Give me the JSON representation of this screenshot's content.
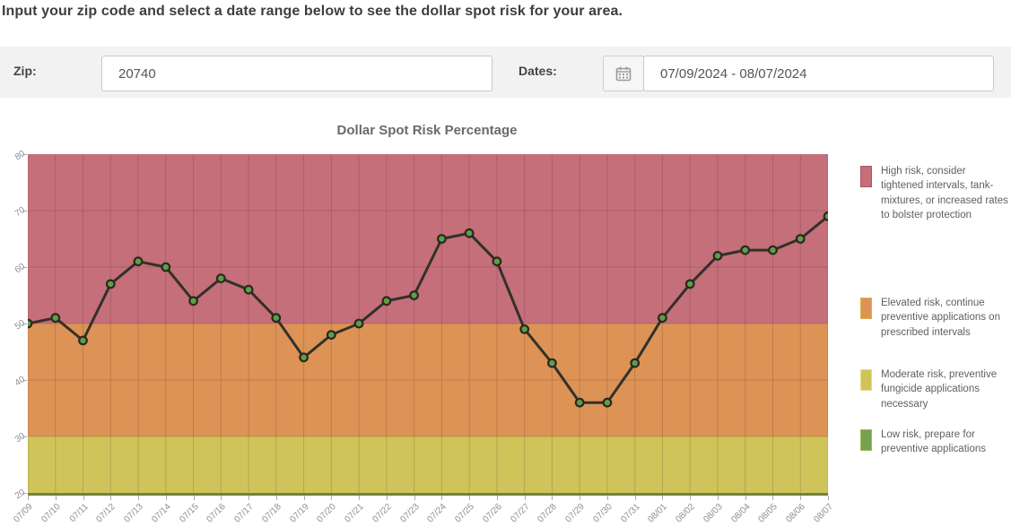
{
  "page": {
    "instruction": "Input your zip code and select a date range below to see the dollar spot risk for your area."
  },
  "form": {
    "zip_label": "Zip:",
    "zip_value": "20740",
    "dates_label": "Dates:",
    "dates_value": "07/09/2024 - 08/07/2024",
    "calendar_icon": "calendar-icon"
  },
  "chart_data": {
    "type": "line",
    "title": "Dollar Spot Risk Percentage",
    "x": [
      "07/09",
      "07/10",
      "07/11",
      "07/12",
      "07/13",
      "07/14",
      "07/15",
      "07/16",
      "07/17",
      "07/18",
      "07/19",
      "07/20",
      "07/21",
      "07/22",
      "07/23",
      "07/24",
      "07/25",
      "07/26",
      "07/27",
      "07/28",
      "07/29",
      "07/30",
      "07/31",
      "08/01",
      "08/02",
      "08/03",
      "08/04",
      "08/05",
      "08/06",
      "08/07"
    ],
    "values": [
      50,
      51,
      47,
      57,
      61,
      60,
      54,
      58,
      56,
      51,
      44,
      48,
      50,
      54,
      55,
      65,
      66,
      61,
      49,
      43,
      36,
      36,
      43,
      51,
      57,
      62,
      63,
      63,
      65,
      69
    ],
    "ylim": [
      20,
      80
    ],
    "yticks": [
      80,
      70,
      60,
      50,
      40,
      30,
      20
    ],
    "grid": true,
    "legend_position": "right",
    "line_color": "#33302b",
    "marker_fill": "#5f9e45",
    "marker_stroke": "#2b2722",
    "grid_color": "rgba(80,40,40,0.20)",
    "bands": [
      {
        "name": "high",
        "from": 50,
        "to": 80,
        "color": "#c46f7a"
      },
      {
        "name": "elevated",
        "from": 30,
        "to": 50,
        "color": "#dc9355"
      },
      {
        "name": "moderate",
        "from": 20,
        "to": 30,
        "color": "#cfc45a"
      },
      {
        "name": "low",
        "from": null,
        "to": 20,
        "color": "#6f8440"
      }
    ]
  },
  "legend": {
    "items": [
      {
        "color": "#c46f7a",
        "border": "#a85560",
        "text": "High risk, consider tightened intervals, tank-mixtures, or increased rates to bolster protection"
      },
      {
        "color": "#dc9355",
        "border": "#d8b44a",
        "text": "Elevated risk, continue preventive applications on prescribed intervals"
      },
      {
        "color": "#cfc45a",
        "border": "#e5dd8d",
        "text": "Moderate risk, preventive fungicide applications necessary"
      },
      {
        "color": "#76a24e",
        "border": "#9fb95c",
        "text": "Low risk, prepare for preventive applications"
      }
    ]
  }
}
